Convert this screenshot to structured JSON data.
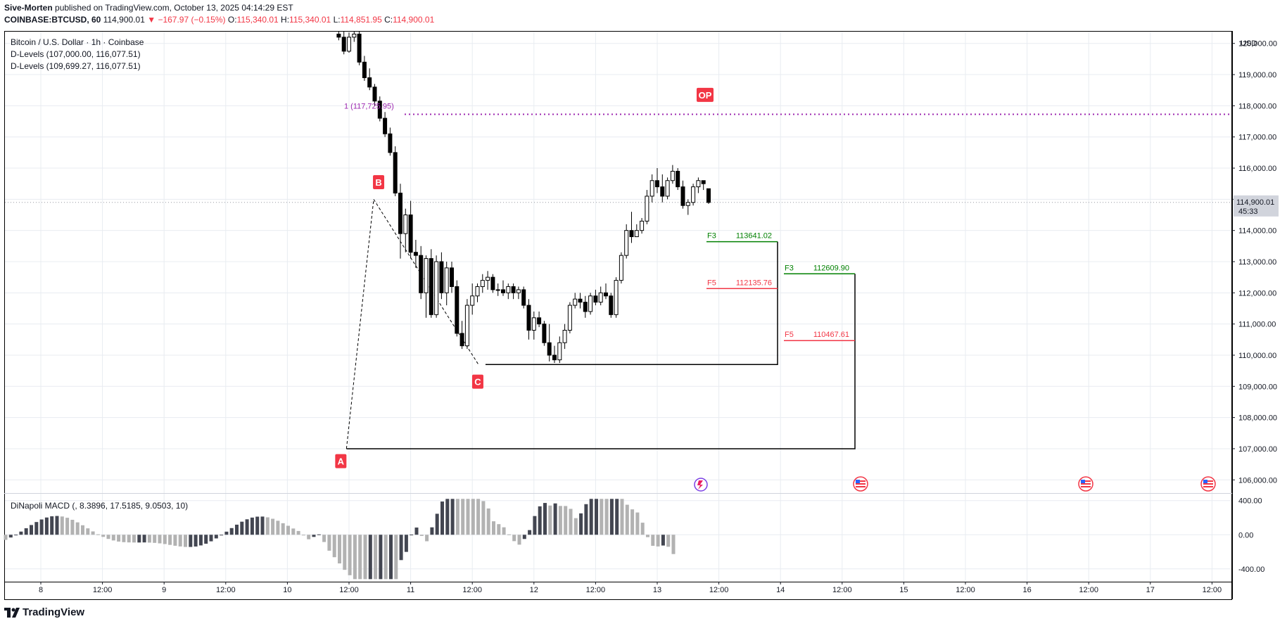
{
  "header": {
    "author": "Sive-Morten",
    "published_text": "published on TradingView.com, October 13, 2025 04:14:29 EST",
    "symbol": "COINBASE:BTCUSD, 60",
    "last": "114,900.01",
    "change": "−167.97 (−0.15%)",
    "o_label": "O:",
    "o_value": "115,340.01",
    "h_label": "H:",
    "h_value": "115,340.01",
    "l_label": "L:",
    "l_value": "114,851.95",
    "c_label": "C:",
    "c_value": "114,900.01"
  },
  "legend": {
    "title": "Bitcoin / U.S. Dollar · 1h · Coinbase",
    "d_levels_1": "D-Levels (107,000.00, 116,077.51)",
    "d_levels_2": "D-Levels (109,699.27, 116,077.51)",
    "macd_title": "DiNapoli MACD (, 8.3896, 17.5185, 9.0503, 10)"
  },
  "footer": {
    "brand": "TradingView"
  },
  "colors": {
    "up": "#ffffff",
    "down": "#000000",
    "red": "#f23645",
    "green": "#089981",
    "target_green": "#008000",
    "purple": "#9c27b0",
    "grid": "#e8ecf1",
    "macd_light": "#b2b2b2",
    "macd_dark": "#434651"
  },
  "chart_data": {
    "type": "candlestick",
    "currency": "USD",
    "ylim": [
      105600,
      120400
    ],
    "y_ticks": [
      106000,
      107000,
      108000,
      109000,
      110000,
      111000,
      112000,
      113000,
      114000,
      115000,
      116000,
      117000,
      118000,
      119000,
      120000
    ],
    "y_tick_labels": [
      "106,000.00",
      "107,000.00",
      "108,000.00",
      "109,000.00",
      "110,000.00",
      "111,000.00",
      "112,000.00",
      "113,000.00",
      "114,000.00",
      "115,000.00",
      "116,000.00",
      "117,000.00",
      "118,000.00",
      "119,000.00",
      "120,000.00"
    ],
    "x_ticks": [
      "8",
      "12:00",
      "9",
      "12:00",
      "10",
      "12:00",
      "11",
      "12:00",
      "12",
      "12:00",
      "13",
      "12:00",
      "14",
      "12:00",
      "15",
      "12:00",
      "16",
      "12:00",
      "17",
      "12:00"
    ],
    "last_price_label": "114,900.01",
    "countdown": "45:33",
    "candles": [
      [
        120300,
        120450,
        120100,
        120200
      ],
      [
        120200,
        120400,
        119650,
        119750
      ],
      [
        119750,
        120350,
        119700,
        120200
      ],
      [
        120200,
        120400,
        120050,
        120300
      ],
      [
        120300,
        120400,
        119300,
        119400
      ],
      [
        119400,
        119600,
        118800,
        118900
      ],
      [
        118900,
        119200,
        118500,
        118600
      ],
      [
        118600,
        118700,
        118000,
        118150
      ],
      [
        118150,
        118300,
        117500,
        117600
      ],
      [
        117600,
        117800,
        117000,
        117100
      ],
      [
        117100,
        117300,
        116400,
        116500
      ],
      [
        116500,
        116700,
        115100,
        115200
      ],
      [
        115200,
        115500,
        113100,
        113900
      ],
      [
        113900,
        114700,
        113300,
        114500
      ],
      [
        114500,
        114950,
        113100,
        113300
      ],
      [
        113300,
        113700,
        112800,
        113200
      ],
      [
        113200,
        113500,
        111800,
        112000
      ],
      [
        112000,
        113200,
        111200,
        113100
      ],
      [
        113100,
        113400,
        111200,
        111300
      ],
      [
        111300,
        113200,
        111200,
        113000
      ],
      [
        113000,
        113300,
        111800,
        112000
      ],
      [
        112000,
        113000,
        111600,
        112800
      ],
      [
        112800,
        113000,
        112000,
        112200
      ],
      [
        112200,
        112400,
        110600,
        110700
      ],
      [
        110700,
        111100,
        110200,
        110300
      ],
      [
        110300,
        111800,
        110200,
        111600
      ],
      [
        111600,
        112300,
        111300,
        111900
      ],
      [
        111900,
        112300,
        111700,
        112200
      ],
      [
        112200,
        112600,
        112000,
        112400
      ],
      [
        112400,
        112700,
        112100,
        112500
      ],
      [
        112500,
        112600,
        112000,
        112100
      ],
      [
        112100,
        112300,
        111900,
        112100
      ],
      [
        112100,
        112400,
        111900,
        112000
      ],
      [
        112000,
        112300,
        111800,
        112200
      ],
      [
        112200,
        112300,
        111800,
        112000
      ],
      [
        112000,
        112200,
        111800,
        112100
      ],
      [
        112100,
        112200,
        111500,
        111600
      ],
      [
        111600,
        111800,
        110500,
        110800
      ],
      [
        110800,
        111400,
        110500,
        111200
      ],
      [
        111200,
        111400,
        110900,
        111000
      ],
      [
        111000,
        111100,
        110300,
        110400
      ],
      [
        110400,
        111000,
        109800,
        110000
      ],
      [
        110000,
        110300,
        109750,
        109850
      ],
      [
        109850,
        110600,
        109750,
        110400
      ],
      [
        110400,
        111000,
        110200,
        110800
      ],
      [
        110800,
        111700,
        110700,
        111600
      ],
      [
        111600,
        112000,
        111500,
        111800
      ],
      [
        111800,
        112000,
        111500,
        111700
      ],
      [
        111700,
        111900,
        111200,
        111400
      ],
      [
        111400,
        112000,
        111300,
        111900
      ],
      [
        111900,
        112100,
        111600,
        111700
      ],
      [
        111700,
        112200,
        111600,
        112000
      ],
      [
        112000,
        112300,
        111800,
        111900
      ],
      [
        111900,
        112000,
        111200,
        111300
      ],
      [
        111300,
        112500,
        111200,
        112400
      ],
      [
        112400,
        113300,
        112300,
        113200
      ],
      [
        113200,
        114200,
        113100,
        114000
      ],
      [
        114000,
        114600,
        113600,
        113800
      ],
      [
        113800,
        114200,
        113800,
        114000
      ],
      [
        114000,
        114400,
        113900,
        114300
      ],
      [
        114300,
        115300,
        114200,
        115100
      ],
      [
        115100,
        115800,
        114900,
        115600
      ],
      [
        115600,
        116000,
        115200,
        115400
      ],
      [
        115400,
        115800,
        114900,
        115100
      ],
      [
        115100,
        115700,
        115000,
        115600
      ],
      [
        115600,
        116100,
        115500,
        115900
      ],
      [
        115900,
        116000,
        115300,
        115400
      ],
      [
        115400,
        115600,
        114700,
        114800
      ],
      [
        114800,
        115000,
        114500,
        114900
      ],
      [
        114900,
        115500,
        114800,
        115400
      ],
      [
        115400,
        115700,
        115200,
        115600
      ],
      [
        115600,
        115600,
        115300,
        115500
      ],
      [
        115340.01,
        115340.01,
        114851.95,
        114900.01
      ]
    ],
    "annotations": {
      "labels": [
        {
          "text": "A",
          "price": 106600
        },
        {
          "text": "B",
          "price": 115550
        },
        {
          "text": "C",
          "price": 109150
        },
        {
          "text": "OP",
          "price": 118350
        }
      ],
      "fib_1": {
        "text": "1 (117,725.95)",
        "price": 117725.95
      },
      "targets_1": [
        {
          "name": "F3",
          "value": "113641.02",
          "price": 113641.02
        },
        {
          "name": "F5",
          "value": "112135.76",
          "price": 112135.76
        }
      ],
      "targets_2": [
        {
          "name": "F3",
          "value": "112609.90",
          "price": 112609.9
        },
        {
          "name": "F5",
          "value": "110467.61",
          "price": 110467.61
        }
      ],
      "box1_bottom": 109699.27,
      "box2_bottom": 107000
    },
    "macd": {
      "y_tick_labels": [
        "400.00",
        "0.00",
        "-400.00"
      ],
      "y_ticks": [
        400,
        0,
        -400
      ],
      "ylim": [
        -550,
        480
      ]
    }
  }
}
